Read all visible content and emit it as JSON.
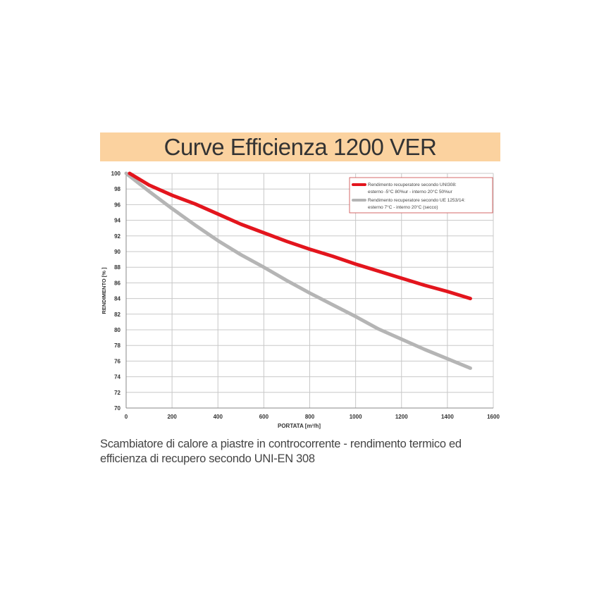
{
  "title": "Curve Efficienza 1200 VER",
  "caption": "Scambiatore di calore a piastre in controcorrente - rendimento termico ed efficienza di recupero secondo UNI-EN 308",
  "chart_data": {
    "type": "line",
    "xlabel": "PORTATA [m³/h]",
    "ylabel": "RENDIMENTO [%  ]",
    "xlim": [
      0,
      1600
    ],
    "ylim": [
      70,
      100
    ],
    "xticks": [
      0,
      200,
      400,
      600,
      800,
      1000,
      1200,
      1400,
      1600
    ],
    "yticks": [
      70,
      72,
      74,
      76,
      78,
      80,
      82,
      84,
      86,
      88,
      90,
      92,
      94,
      96,
      98,
      100
    ],
    "grid": true,
    "legend_position": "top-right",
    "series": [
      {
        "name": "Rendimento recuperatore secondo UNI308: esterno -5°C 80%ur - interno 20°C 50%ur",
        "legend_lines": [
          "Rendimento recuperatore secondo UNI308:",
          "esterno -5°C 80%ur - interno 20°C 50%ur"
        ],
        "color": "#e3151d",
        "x": [
          15,
          100,
          200,
          300,
          400,
          500,
          600,
          700,
          800,
          900,
          1000,
          1100,
          1200,
          1300,
          1400,
          1500
        ],
        "y": [
          100,
          98.5,
          97.2,
          96.1,
          94.8,
          93.5,
          92.4,
          91.3,
          90.3,
          89.4,
          88.4,
          87.5,
          86.6,
          85.7,
          84.9,
          84.0
        ]
      },
      {
        "name": "Rendimento recuperatore secondo UE 1253/14: esterno 7°C - interno 20°C (secco)",
        "legend_lines": [
          "Rendimento recuperatore secondo UE 1253/14:",
          "esterno 7°C - interno 20°C (secco)"
        ],
        "color": "#b5b5b5",
        "x": [
          0,
          100,
          200,
          300,
          400,
          500,
          600,
          700,
          800,
          900,
          1000,
          1100,
          1200,
          1300,
          1400,
          1500
        ],
        "y": [
          100,
          97.7,
          95.5,
          93.4,
          91.4,
          89.6,
          88.0,
          86.3,
          84.7,
          83.2,
          81.7,
          80.1,
          78.8,
          77.5,
          76.3,
          75.1
        ]
      }
    ]
  }
}
